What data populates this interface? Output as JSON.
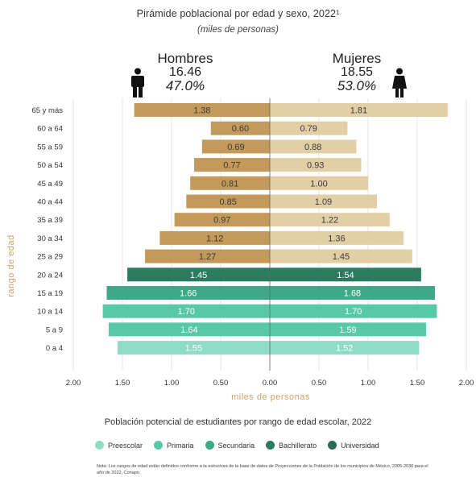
{
  "title": "Pirámide poblacional por edad y sexo, 2022¹",
  "subtitle": "(miles de personas)",
  "men": {
    "label": "Hombres",
    "total": "16.46",
    "pct": "47.0%"
  },
  "women": {
    "label": "Mujeres",
    "total": "18.55",
    "pct": "53.0%"
  },
  "students_title": "Población potencial de estudiantes por rango de edad escolar, 2022",
  "legend": [
    {
      "label": "Preescolar",
      "color": "#8ddcc3"
    },
    {
      "label": "Primaria",
      "color": "#57c9a6"
    },
    {
      "label": "Secundaria",
      "color": "#3ea987"
    },
    {
      "label": "Bachillerato",
      "color": "#2e7a5f"
    },
    {
      "label": "Universidad",
      "color": "#2a6b54"
    }
  ],
  "note": "Nota: Los rangos de edad están definidos conforme a la estructura de la base de datos de Proyecciones de la Población de los municipios de México, 2005-2030 para el año de 2022, Conapo.",
  "chart_data": {
    "type": "bar",
    "orientation": "horizontal-pyramid",
    "title": "Pirámide poblacional por edad y sexo, 2022¹",
    "subtitle": "(miles de personas)",
    "xlabel": "miles de personas",
    "ylabel": "rango de edad",
    "xlim": [
      -2.0,
      2.0
    ],
    "x_ticks": [
      "2.00",
      "1.50",
      "1.00",
      "0.50",
      "0.00",
      "0.50",
      "1.00",
      "1.50",
      "2.00"
    ],
    "grid": "vertical",
    "categories": [
      "65 y más",
      "60 a 64",
      "55 a 59",
      "50 a 54",
      "45 a 49",
      "40 a 44",
      "35 a 39",
      "30 a 34",
      "25 a 29",
      "20 a 24",
      "15 a 19",
      "10 a 14",
      "5 a 9",
      "0 a 4"
    ],
    "series": [
      {
        "name": "Hombres",
        "side": "left",
        "values": [
          1.38,
          0.6,
          0.69,
          0.77,
          0.81,
          0.85,
          0.97,
          1.12,
          1.27,
          1.45,
          1.66,
          1.7,
          1.64,
          1.55
        ],
        "labels": [
          "1.38",
          "0.60",
          "0.69",
          "0.77",
          "0.81",
          "0.85",
          "0.97",
          "1.12",
          "1.27",
          "1.45",
          "1.66",
          "1.70",
          "1.64",
          "1.55"
        ]
      },
      {
        "name": "Mujeres",
        "side": "right",
        "values": [
          1.81,
          0.79,
          0.88,
          0.93,
          1.0,
          1.09,
          1.22,
          1.36,
          1.45,
          1.54,
          1.68,
          1.7,
          1.59,
          1.52
        ],
        "labels": [
          "1.81",
          "0.79",
          "0.88",
          "0.93",
          "1.00",
          "1.09",
          "1.22",
          "1.36",
          "1.45",
          "1.54",
          "1.68",
          "1.70",
          "1.59",
          "1.52"
        ]
      }
    ],
    "bar_colors": {
      "men": [
        "#c49a5b",
        "#c49a5b",
        "#c49a5b",
        "#c49a5b",
        "#c49a5b",
        "#c49a5b",
        "#c49a5b",
        "#c49a5b",
        "#c49a5b",
        "#2e7a5f",
        "#3ea987",
        "#57c9a6",
        "#57c9a6",
        "#8ddcc3"
      ],
      "women": [
        "#e3cfa6",
        "#e3cfa6",
        "#e3cfa6",
        "#e3cfa6",
        "#e3cfa6",
        "#e3cfa6",
        "#e3cfa6",
        "#e3cfa6",
        "#e3cfa6",
        "#2e7a5f",
        "#3ea987",
        "#57c9a6",
        "#57c9a6",
        "#8ddcc3"
      ]
    }
  }
}
